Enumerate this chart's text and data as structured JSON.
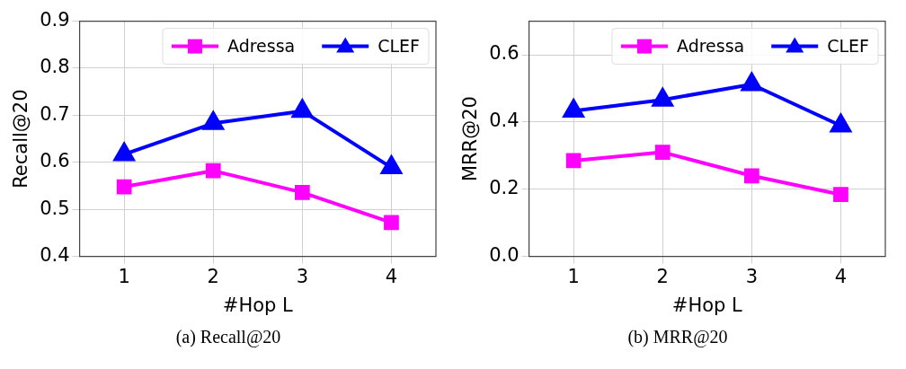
{
  "chart_data": [
    {
      "type": "line",
      "xlabel": "#Hop L",
      "ylabel": "Recall@20",
      "annotations": [
        "(a) Recall@20"
      ],
      "x": [
        1,
        2,
        3,
        4
      ],
      "xlim": [
        0.5,
        4.5
      ],
      "xticks": [
        1,
        2,
        3,
        4
      ],
      "ylim": [
        0.4,
        0.9
      ],
      "yticks": [
        0.4,
        0.5,
        0.6,
        0.7,
        0.8,
        0.9
      ],
      "grid": true,
      "legend": "top right",
      "series": [
        {
          "name": "Adressa",
          "color": "#ff00ff",
          "marker": "square",
          "values": [
            0.548,
            0.582,
            0.536,
            0.472
          ]
        },
        {
          "name": "CLEF",
          "color": "#0000ff",
          "marker": "triangle",
          "values": [
            0.617,
            0.683,
            0.709,
            0.589
          ]
        }
      ]
    },
    {
      "type": "line",
      "xlabel": "#Hop L",
      "ylabel": "MRR@20",
      "annotations": [
        "(b) MRR@20"
      ],
      "x": [
        1,
        2,
        3,
        4
      ],
      "xlim": [
        0.5,
        4.5
      ],
      "xticks": [
        1,
        2,
        3,
        4
      ],
      "ylim": [
        0,
        0.7
      ],
      "yticks": [
        {
          "value": 0,
          "label": "0.0"
        },
        {
          "value": 0.2,
          "label": "0.2"
        },
        {
          "value": 0.4,
          "label": "0.4"
        },
        {
          "value": 0.6,
          "label": "0.6"
        }
      ],
      "grid": true,
      "legend": "top right",
      "series": [
        {
          "name": "Adressa",
          "color": "#ff00ff",
          "marker": "square",
          "values": [
            0.285,
            0.31,
            0.24,
            0.184
          ]
        },
        {
          "name": "CLEF",
          "color": "#0000ff",
          "marker": "triangle",
          "values": [
            0.433,
            0.466,
            0.512,
            0.389
          ]
        }
      ]
    }
  ]
}
